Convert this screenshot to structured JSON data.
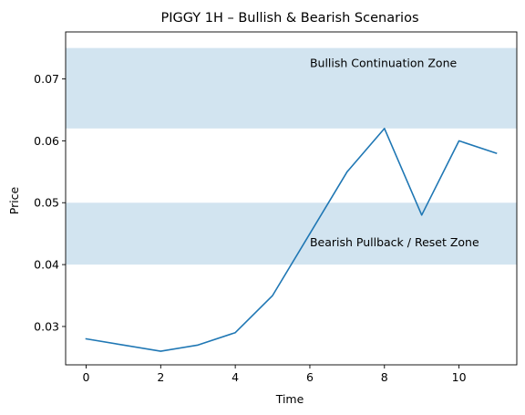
{
  "chart_data": {
    "type": "line",
    "title": "PIGGY 1H – Bullish & Bearish Scenarios",
    "xlabel": "Time",
    "ylabel": "Price",
    "xlim": [
      -0.55,
      11.55
    ],
    "ylim": [
      0.0238,
      0.0776
    ],
    "xticks": [
      0,
      2,
      4,
      6,
      8,
      10
    ],
    "xtick_labels": [
      "0",
      "2",
      "4",
      "6",
      "8",
      "10"
    ],
    "yticks": [
      0.03,
      0.04,
      0.05,
      0.06,
      0.07
    ],
    "ytick_labels": [
      "0.03",
      "0.04",
      "0.05",
      "0.06",
      "0.07"
    ],
    "grid": false,
    "series": [
      {
        "x": [
          0,
          1,
          2,
          3,
          4,
          5,
          6,
          7,
          8,
          9,
          10,
          11
        ],
        "values": [
          0.028,
          0.027,
          0.026,
          0.027,
          0.029,
          0.035,
          0.045,
          0.055,
          0.062,
          0.048,
          0.06,
          0.058
        ],
        "color": "#1f77b4"
      }
    ],
    "zones": [
      {
        "label": "Bullish Continuation Zone",
        "y0": 0.062,
        "y1": 0.075,
        "color": "#1f77b4",
        "opacity": 0.2,
        "label_x": 6
      },
      {
        "label": "Bearish Pullback / Reset Zone",
        "y0": 0.04,
        "y1": 0.05,
        "color": "#1f77b4",
        "opacity": 0.2,
        "label_x": 6
      }
    ]
  }
}
